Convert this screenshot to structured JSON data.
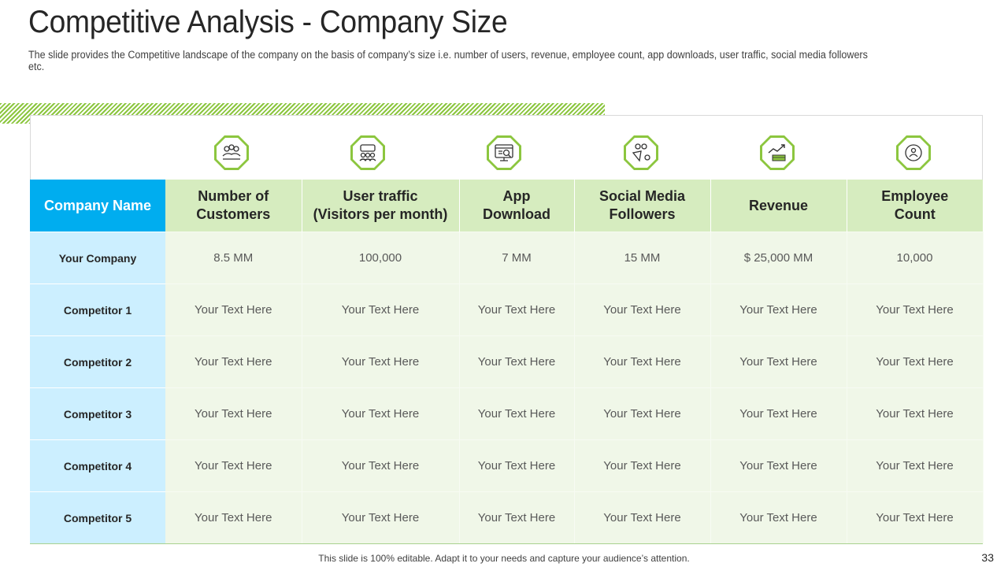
{
  "slide": {
    "title": "Competitive Analysis - Company Size",
    "subtitle": "The slide provides the Competitive landscape of the company on the basis of company’s size i.e. number of users, revenue, employee count, app downloads, user traffic, social media followers etc.",
    "footer": "This slide is 100% editable. Adapt it to your needs and capture your audience’s attention.",
    "page_number": "33"
  },
  "colors": {
    "accent_blue": "#00adef",
    "accent_green": "#8cc63f",
    "header_green": "#d6ecbf",
    "name_column": "#ccefff",
    "cell_bg": "#f0f7e8"
  },
  "table": {
    "name_header_line1": "Company Name",
    "headers": [
      {
        "line1": "Number of",
        "line2": "Customers",
        "icon": "customers-icon"
      },
      {
        "line1": "User traffic",
        "line2": "(Visitors per month)",
        "icon": "user-traffic-icon"
      },
      {
        "line1": "App",
        "line2": "Download",
        "icon": "app-download-icon"
      },
      {
        "line1": "Social Media",
        "line2": "Followers",
        "icon": "social-media-icon"
      },
      {
        "line1": "Revenue",
        "line2": "",
        "icon": "revenue-icon"
      },
      {
        "line1": "Employee",
        "line2": "Count",
        "icon": "employee-icon"
      }
    ],
    "rows": [
      {
        "name": "Your Company",
        "values": [
          "8.5 MM",
          "100,000",
          "7 MM",
          "15 MM",
          "$ 25,000 MM",
          "10,000"
        ]
      },
      {
        "name": "Competitor 1",
        "values": [
          "Your Text Here",
          "Your Text Here",
          "Your Text Here",
          "Your Text Here",
          "Your Text Here",
          "Your Text Here"
        ]
      },
      {
        "name": "Competitor 2",
        "values": [
          "Your Text Here",
          "Your Text Here",
          "Your Text Here",
          "Your Text Here",
          "Your Text Here",
          "Your Text Here"
        ]
      },
      {
        "name": "Competitor 3",
        "values": [
          "Your Text Here",
          "Your Text Here",
          "Your Text Here",
          "Your Text Here",
          "Your Text Here",
          "Your Text Here"
        ]
      },
      {
        "name": "Competitor 4",
        "values": [
          "Your Text Here",
          "Your Text Here",
          "Your Text Here",
          "Your Text Here",
          "Your Text Here",
          "Your Text Here"
        ]
      },
      {
        "name": "Competitor 5",
        "values": [
          "Your Text Here",
          "Your Text Here",
          "Your Text Here",
          "Your Text Here",
          "Your Text Here",
          "Your Text Here"
        ]
      }
    ]
  }
}
